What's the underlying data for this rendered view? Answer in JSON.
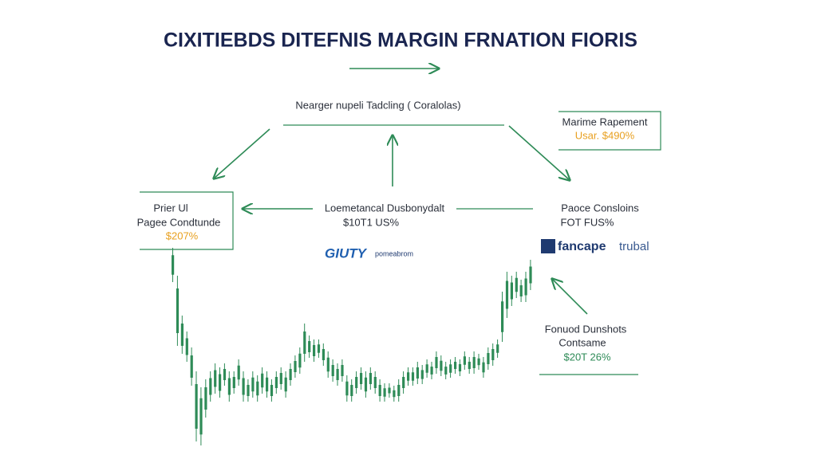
{
  "title": "CIXITIEBDS DITEFNIS MARGIN FRNATION FIORIS",
  "top_label": "Nearger nupeli Tadcling ( Coralolas)",
  "right_box": {
    "line1": "Marime Rapement",
    "line2": "Usar. $490%"
  },
  "left_box": {
    "line1": "Prier Ul",
    "line2": "Pagee Condtunde",
    "line3": "$207%"
  },
  "center": {
    "line1": "Loemetancal Dusbonydalt",
    "line2": "$10T1 US%"
  },
  "center_logo": {
    "mark": "GIUTY",
    "text": "pomeabrom"
  },
  "right_mid": {
    "line1": "Paoce Consloins",
    "line2": "FOT FUS%"
  },
  "right_logo": {
    "mark": "fancape",
    "text": "trubal"
  },
  "bottom_right": {
    "line1": "Fonuod Dunshots",
    "line2": "Contsame",
    "line3": "$20T 26%"
  }
}
